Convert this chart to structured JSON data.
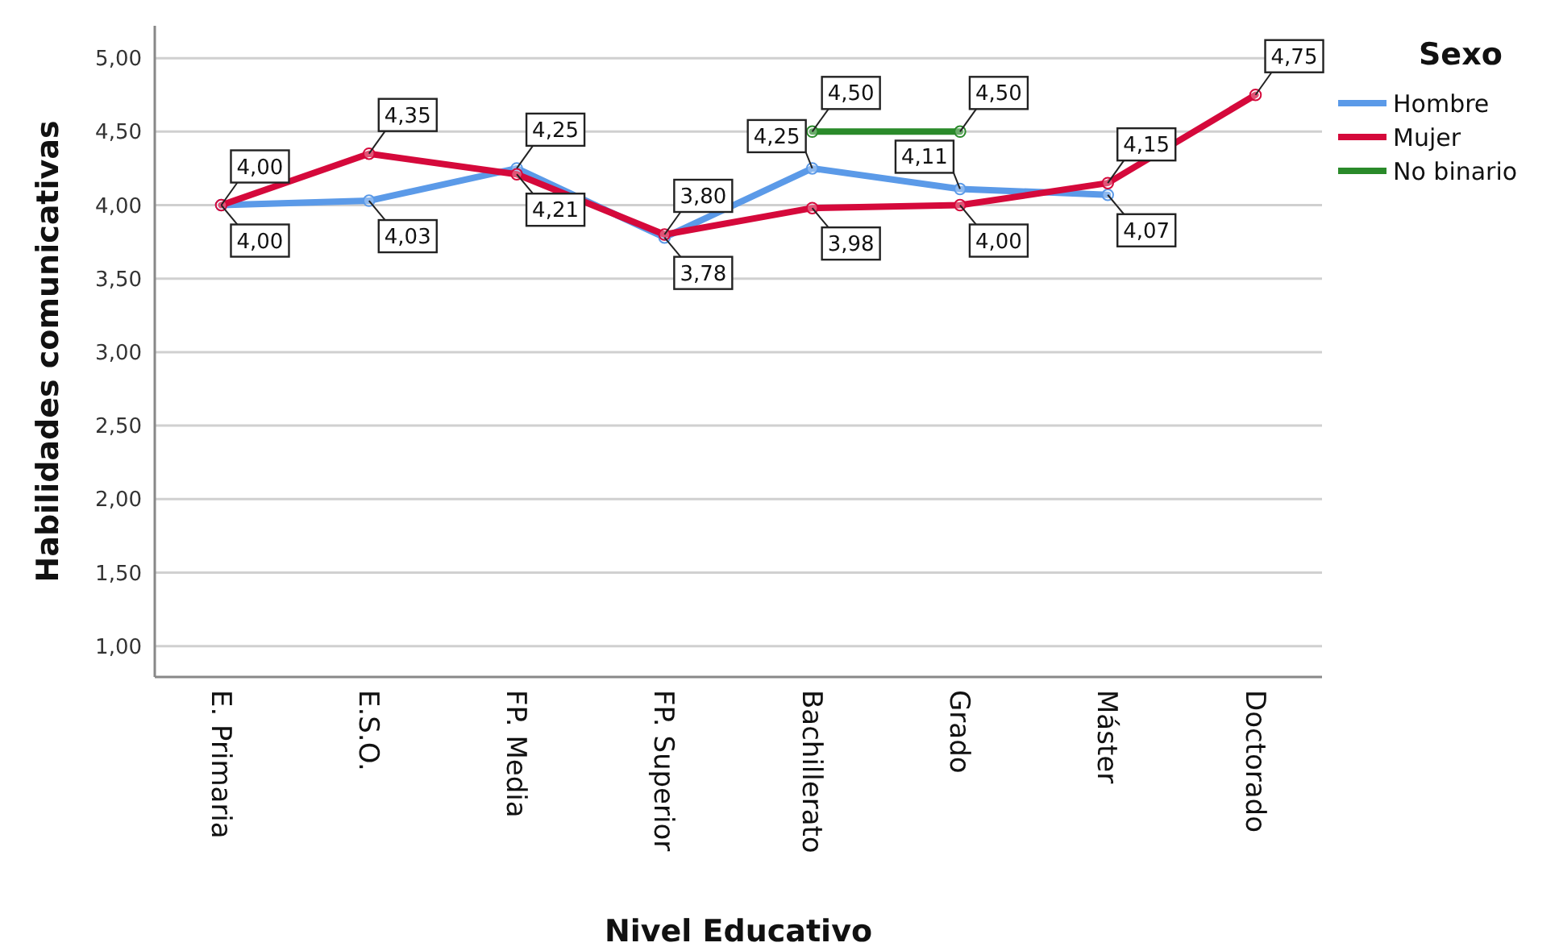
{
  "chart_data": {
    "type": "line",
    "xlabel": "Nivel Educativo",
    "ylabel": "Habilidades comunicativas",
    "legend_title": "Sexo",
    "legend": "top right",
    "grid": "y",
    "marker": "circle",
    "line_style": "solid",
    "categories": [
      "E. Primaria",
      "E.S.O.",
      "FP. Media",
      "FP. Superior",
      "Bachillerato",
      "Grado",
      "Máster",
      "Doctorado"
    ],
    "ylim": [
      0.79,
      5.22
    ],
    "yticks": [
      {
        "value": 1,
        "label": "1,00"
      },
      {
        "value": 1.5,
        "label": "1,50"
      },
      {
        "value": 2,
        "label": "2,00"
      },
      {
        "value": 2.5,
        "label": "2,50"
      },
      {
        "value": 3,
        "label": "3,00"
      },
      {
        "value": 3.5,
        "label": "3,50"
      },
      {
        "value": 4,
        "label": "4,00"
      },
      {
        "value": 4.5,
        "label": "4,50"
      },
      {
        "value": 5,
        "label": "5,00"
      }
    ],
    "series": [
      {
        "name": "Hombre",
        "color": "#5b9ae8",
        "values": [
          4.0,
          4.03,
          4.25,
          3.78,
          4.25,
          4.11,
          4.07,
          null
        ],
        "value_labels": [
          "4,00",
          "4,03",
          "4,25",
          "3,78",
          "4,25",
          "4,11",
          "4,07",
          null
        ]
      },
      {
        "name": "Mujer",
        "color": "#d5093b",
        "values": [
          4.0,
          4.35,
          4.21,
          3.8,
          3.98,
          4.0,
          4.15,
          4.75
        ],
        "value_labels": [
          "4,00",
          "4,35",
          "4,21",
          "3,80",
          "3,98",
          "4,00",
          "4,15",
          "4,75"
        ]
      },
      {
        "name": "No binario",
        "color": "#2a8a2a",
        "values": [
          null,
          null,
          null,
          null,
          4.5,
          4.5,
          null,
          null
        ],
        "value_labels": [
          null,
          null,
          null,
          null,
          "4,50",
          "4,50",
          null,
          null
        ]
      }
    ]
  }
}
